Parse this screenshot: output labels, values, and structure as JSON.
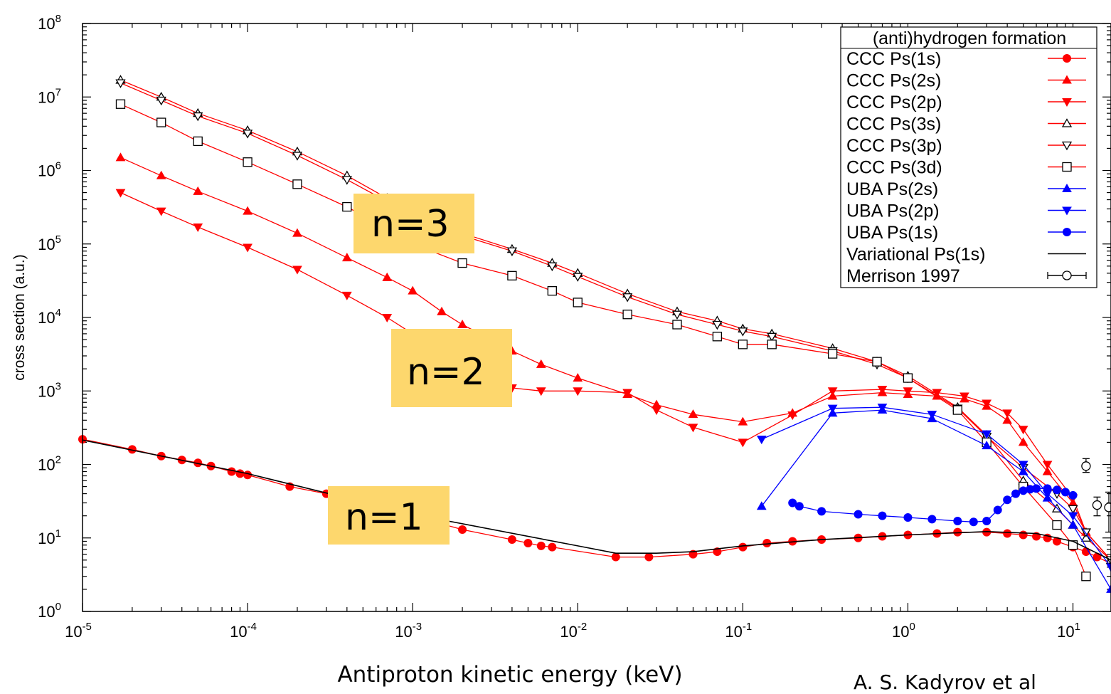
{
  "chart_data": {
    "type": "line",
    "title": "",
    "xlabel": "Antiproton kinetic energy (keV)",
    "ylabel": "cross section (a.u.)",
    "x_scale": "log",
    "y_scale": "log",
    "xlim": [
      1e-05,
      17
    ],
    "ylim": [
      1,
      100000000
    ],
    "grid": false,
    "x_ticks": [
      {
        "base": "10",
        "exp": "-5",
        "value": 1e-05
      },
      {
        "base": "10",
        "exp": "-4",
        "value": 0.0001
      },
      {
        "base": "10",
        "exp": "-3",
        "value": 0.001
      },
      {
        "base": "10",
        "exp": "-2",
        "value": 0.01
      },
      {
        "base": "10",
        "exp": "-1",
        "value": 0.1
      },
      {
        "base": "10",
        "exp": "0",
        "value": 1
      },
      {
        "base": "10",
        "exp": "1",
        "value": 10
      }
    ],
    "y_ticks": [
      {
        "base": "10",
        "exp": "0",
        "value": 1
      },
      {
        "base": "10",
        "exp": "1",
        "value": 10
      },
      {
        "base": "10",
        "exp": "2",
        "value": 100
      },
      {
        "base": "10",
        "exp": "3",
        "value": 1000
      },
      {
        "base": "10",
        "exp": "4",
        "value": 10000
      },
      {
        "base": "10",
        "exp": "5",
        "value": 100000
      },
      {
        "base": "10",
        "exp": "6",
        "value": 1000000
      },
      {
        "base": "10",
        "exp": "7",
        "value": 10000000
      },
      {
        "base": "10",
        "exp": "8",
        "value": 100000000
      }
    ],
    "legend": {
      "title": "(anti)hydrogen formation",
      "placement": "top-right"
    },
    "series": [
      {
        "name": "CCC Ps(1s)",
        "color": "#ff0000",
        "marker": "circle-filled",
        "x": [
          1e-05,
          2e-05,
          3e-05,
          4e-05,
          5e-05,
          6e-05,
          8e-05,
          9e-05,
          0.0001,
          0.00018,
          0.0003,
          0.0005,
          0.001,
          0.002,
          0.004,
          0.005,
          0.006,
          0.007,
          0.017,
          0.027,
          0.05,
          0.07,
          0.1,
          0.14,
          0.2,
          0.3,
          0.5,
          0.7,
          1.0,
          1.5,
          2.0,
          3.0,
          4.0,
          5.0,
          6.0,
          7.0,
          8.0,
          10.0,
          12.0,
          14.0,
          17.0
        ],
        "y": [
          220,
          160,
          130,
          115,
          105,
          95,
          80,
          75,
          72,
          50,
          40,
          32,
          20,
          13,
          9.5,
          8.5,
          7.8,
          7.5,
          5.5,
          5.5,
          6.0,
          6.5,
          7.5,
          8.5,
          9.0,
          9.5,
          10.0,
          10.5,
          11.0,
          11.5,
          12.0,
          12.0,
          11.5,
          11.0,
          10.5,
          10.0,
          9.0,
          7.5,
          6.5,
          5.5,
          4.5
        ]
      },
      {
        "name": "CCC Ps(2s)",
        "color": "#ff0000",
        "marker": "triangle-up-filled",
        "x": [
          1.7e-05,
          3e-05,
          5e-05,
          0.0001,
          0.0002,
          0.0004,
          0.0007,
          0.001,
          0.0015,
          0.002,
          0.003,
          0.004,
          0.006,
          0.01,
          0.02,
          0.03,
          0.05,
          0.1,
          0.2,
          0.35,
          0.7,
          1.0,
          1.5,
          2.2,
          3.0,
          4.0,
          5.0,
          7.0,
          10.0,
          12.0,
          17.0
        ],
        "y": [
          1500000,
          850000,
          520000,
          280000,
          140000,
          65000,
          35000,
          23000,
          12000,
          8000,
          5000,
          3500,
          2300,
          1500,
          900,
          650,
          480,
          380,
          500,
          850,
          950,
          900,
          850,
          780,
          620,
          400,
          200,
          80,
          30,
          12,
          5
        ]
      },
      {
        "name": "CCC Ps(2p)",
        "color": "#ff0000",
        "marker": "triangle-down-filled",
        "x": [
          1.7e-05,
          3e-05,
          5e-05,
          0.0001,
          0.0002,
          0.0004,
          0.0007,
          0.001,
          0.0015,
          0.002,
          0.003,
          0.004,
          0.006,
          0.01,
          0.02,
          0.03,
          0.05,
          0.1,
          0.2,
          0.35,
          0.7,
          1.0,
          1.5,
          2.2,
          3.0,
          4.0,
          5.0,
          7.0,
          10.0,
          12.0,
          17.0
        ],
        "y": [
          500000,
          280000,
          170000,
          90000,
          45000,
          20000,
          10000,
          6000,
          3500,
          2300,
          1500,
          1100,
          1000,
          1000,
          950,
          550,
          320,
          200,
          470,
          1000,
          1050,
          1000,
          950,
          850,
          680,
          500,
          300,
          100,
          35,
          12,
          5
        ]
      },
      {
        "name": "CCC Ps(3s)",
        "color": "#ff0000",
        "marker": "triangle-up-open",
        "x": [
          1.7e-05,
          3e-05,
          5e-05,
          0.0001,
          0.0002,
          0.0004,
          0.0007,
          0.001,
          0.002,
          0.004,
          0.007,
          0.01,
          0.02,
          0.04,
          0.07,
          0.1,
          0.15,
          0.35,
          0.65,
          1.0,
          2.0,
          3.0,
          5.0,
          8.0,
          10.0,
          12.0,
          17.0
        ],
        "y": [
          17000000,
          10000000,
          6000000,
          3500000,
          1800000,
          850000,
          420000,
          260000,
          140000,
          85000,
          55000,
          40000,
          21000,
          12000,
          9000,
          7000,
          6000,
          3800,
          2500,
          1600,
          600,
          250,
          60,
          25,
          15,
          10,
          5
        ]
      },
      {
        "name": "CCC Ps(3p)",
        "color": "#ff0000",
        "marker": "triangle-down-open",
        "x": [
          1.7e-05,
          3e-05,
          5e-05,
          0.0001,
          0.0002,
          0.0004,
          0.0007,
          0.001,
          0.002,
          0.004,
          0.007,
          0.01,
          0.02,
          0.04,
          0.07,
          0.1,
          0.15,
          0.35,
          0.65,
          1.0,
          2.0,
          3.0,
          5.0,
          8.0,
          10.0,
          12.0,
          17.0
        ],
        "y": [
          15500000,
          9000000,
          5500000,
          3200000,
          1600000,
          750000,
          380000,
          240000,
          130000,
          80000,
          50000,
          36000,
          19000,
          11000,
          8000,
          6500,
          5500,
          3500,
          2300,
          1500,
          580,
          240,
          90,
          40,
          25,
          12,
          5
        ]
      },
      {
        "name": "CCC Ps(3d)",
        "color": "#ff0000",
        "marker": "square-open",
        "x": [
          1.7e-05,
          3e-05,
          5e-05,
          0.0001,
          0.0002,
          0.0004,
          0.0007,
          0.001,
          0.002,
          0.004,
          0.007,
          0.01,
          0.02,
          0.04,
          0.07,
          0.1,
          0.15,
          0.35,
          0.65,
          1.0,
          2.0,
          3.0,
          5.0,
          8.0,
          10.0,
          12.0
        ],
        "y": [
          8000000,
          4500000,
          2500000,
          1300000,
          650000,
          320000,
          160000,
          100000,
          55000,
          37000,
          23000,
          16000,
          11000,
          8000,
          5500,
          4300,
          4300,
          3200,
          2500,
          1500,
          550,
          200,
          50,
          15,
          8,
          3
        ]
      },
      {
        "name": "UBA Ps(2s)",
        "color": "#0000ff",
        "marker": "triangle-up-filled",
        "x": [
          0.13,
          0.35,
          0.7,
          1.4,
          3.0,
          5.0,
          7.0,
          10.0,
          17.0
        ],
        "y": [
          27,
          500,
          550,
          420,
          180,
          80,
          35,
          15,
          2
        ]
      },
      {
        "name": "UBA Ps(2p)",
        "color": "#0000ff",
        "marker": "triangle-down-filled",
        "x": [
          0.13,
          0.35,
          0.7,
          1.4,
          3.0,
          5.0,
          7.0,
          10.0,
          17.0
        ],
        "y": [
          220,
          580,
          600,
          480,
          260,
          100,
          40,
          20,
          4
        ]
      },
      {
        "name": "UBA Ps(1s)",
        "color": "#0000ff",
        "marker": "circle-filled",
        "x": [
          0.2,
          0.22,
          0.3,
          0.5,
          0.7,
          1.0,
          1.4,
          2.0,
          2.5,
          3.0,
          3.5,
          4.0,
          4.5,
          5.0,
          5.5,
          6.0,
          7.0,
          8.0,
          9.0,
          10.0
        ],
        "y": [
          30,
          27,
          23,
          21,
          20,
          19,
          18,
          17,
          16.5,
          17,
          24,
          33,
          40,
          44,
          46,
          47,
          47,
          45,
          42,
          38
        ]
      },
      {
        "name": "Variational Ps(1s)",
        "color": "#000000",
        "marker": "none",
        "x": [
          1e-05,
          0.0001,
          0.001,
          0.01,
          0.017,
          0.03,
          0.05,
          0.1,
          0.3,
          1.0,
          3.0,
          6.0,
          10.0,
          17.0
        ],
        "y": [
          215,
          75,
          21,
          7.8,
          6.2,
          6.2,
          6.5,
          7.8,
          9.5,
          11,
          12.2,
          11.5,
          9,
          5
        ]
      },
      {
        "name": "Merrison 1997",
        "color": "#000000",
        "marker": "circle-open-errorbar",
        "x": [
          12.0,
          14.0,
          16.5
        ],
        "y": [
          95,
          28,
          26
        ],
        "err_lo": [
          78,
          20,
          12
        ],
        "err_hi": [
          120,
          36,
          42
        ]
      }
    ],
    "annotations": [
      {
        "label": "n=3",
        "color": "#fdd76d"
      },
      {
        "label": "n=2",
        "color": "#fdd76d"
      },
      {
        "label": "n=1",
        "color": "#fdd76d"
      }
    ],
    "credit": "A. S. Kadyrov et al"
  }
}
